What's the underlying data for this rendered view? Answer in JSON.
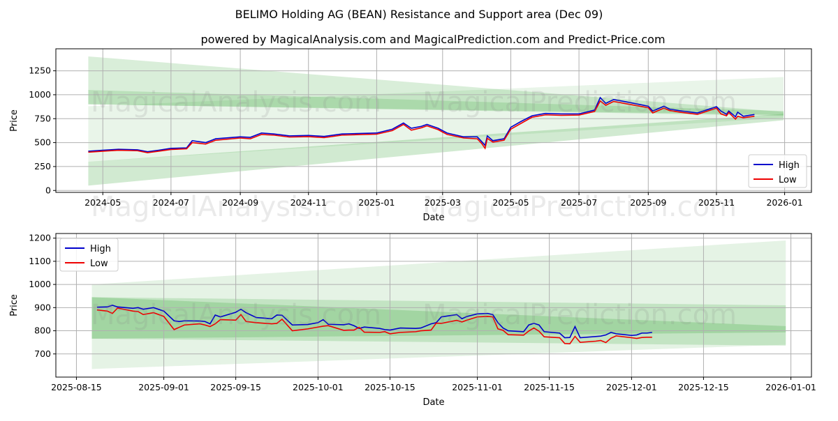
{
  "title": "BELIMO Holding AG (BEAN) Resistance and Support area (Dec 09)",
  "subtitle": "powered by MagicalAnalysis.com and MagicalPrediction.com and Predict-Price.com",
  "watermarks": [
    "MagicalAnalysis.com",
    "MagicalPrediction.com"
  ],
  "colors": {
    "high": "#0000cc",
    "low": "#ee0000",
    "band": "#2ca02c"
  },
  "chart_data": [
    {
      "type": "line",
      "xlabel": "Date",
      "ylabel": "Price",
      "ylim": [
        -20,
        1480
      ],
      "xlim": [
        "2024-03-20",
        "2026-01-25"
      ],
      "grid": true,
      "legend": "bottom-right",
      "yticks": [
        0,
        250,
        500,
        750,
        1000,
        1250
      ],
      "xticks": [
        "2024-05",
        "2024-07",
        "2024-09",
        "2024-11",
        "2025-01",
        "2025-03",
        "2025-05",
        "2025-07",
        "2025-09",
        "2025-11",
        "2026-01"
      ],
      "bands": [
        {
          "name": "resistance-outer",
          "start": "2024-04-18",
          "end": "2025-12-31",
          "top": [
            1400,
            820
          ],
          "bottom": [
            900,
            780
          ],
          "opacity": 0.18
        },
        {
          "name": "resistance-inner",
          "start": "2024-04-18",
          "end": "2025-12-31",
          "top": [
            1050,
            830
          ],
          "bottom": [
            900,
            790
          ],
          "opacity": 0.18
        },
        {
          "name": "support-outer",
          "start": "2024-04-18",
          "end": "2025-12-31",
          "top": [
            300,
            800
          ],
          "bottom": [
            51,
            734
          ],
          "opacity": 0.22
        },
        {
          "name": "support-wide",
          "start": "2024-04-18",
          "end": "2025-12-31",
          "top": [
            880,
            1185
          ],
          "bottom": [
            300,
            760
          ],
          "opacity": 0.1
        }
      ],
      "x": [
        "2024-04-18",
        "2024-05-01",
        "2024-05-15",
        "2024-06-01",
        "2024-06-10",
        "2024-06-20",
        "2024-07-01",
        "2024-07-15",
        "2024-07-20",
        "2024-08-01",
        "2024-08-10",
        "2024-09-01",
        "2024-09-10",
        "2024-09-20",
        "2024-10-01",
        "2024-10-15",
        "2024-11-01",
        "2024-11-15",
        "2024-12-01",
        "2024-12-15",
        "2025-01-01",
        "2025-01-15",
        "2025-01-25",
        "2025-02-01",
        "2025-02-10",
        "2025-02-15",
        "2025-02-25",
        "2025-03-05",
        "2025-03-20",
        "2025-04-01",
        "2025-04-05",
        "2025-04-08",
        "2025-04-10",
        "2025-04-15",
        "2025-04-25",
        "2025-05-01",
        "2025-05-10",
        "2025-05-20",
        "2025-06-01",
        "2025-06-15",
        "2025-07-01",
        "2025-07-15",
        "2025-07-20",
        "2025-07-25",
        "2025-08-01",
        "2025-08-15",
        "2025-09-01",
        "2025-09-05",
        "2025-09-15",
        "2025-09-20",
        "2025-10-01",
        "2025-10-15",
        "2025-11-01",
        "2025-11-05",
        "2025-11-10",
        "2025-11-12",
        "2025-11-18",
        "2025-11-20",
        "2025-11-25",
        "2025-12-05"
      ],
      "series": [
        {
          "name": "High",
          "values": [
            410,
            420,
            430,
            425,
            405,
            420,
            440,
            445,
            520,
            500,
            540,
            560,
            555,
            600,
            590,
            570,
            575,
            565,
            590,
            595,
            600,
            640,
            705,
            650,
            670,
            690,
            650,
            600,
            560,
            560,
            510,
            470,
            570,
            520,
            540,
            660,
            720,
            780,
            805,
            800,
            800,
            840,
            970,
            910,
            950,
            920,
            880,
            830,
            880,
            850,
            830,
            810,
            875,
            830,
            795,
            830,
            770,
            818,
            775,
            793
          ]
        },
        {
          "name": "Low",
          "values": [
            400,
            410,
            420,
            415,
            395,
            410,
            428,
            435,
            500,
            485,
            525,
            548,
            540,
            585,
            578,
            558,
            562,
            552,
            578,
            583,
            588,
            625,
            690,
            630,
            655,
            675,
            635,
            585,
            548,
            540,
            490,
            440,
            545,
            505,
            525,
            640,
            700,
            765,
            790,
            785,
            788,
            825,
            935,
            890,
            930,
            900,
            865,
            810,
            860,
            835,
            815,
            795,
            860,
            800,
            780,
            815,
            745,
            775,
            760,
            775
          ]
        }
      ]
    },
    {
      "type": "line",
      "xlabel": "Date",
      "ylabel": "Price",
      "ylim": [
        600,
        1220
      ],
      "xlim": [
        "2025-08-11",
        "2026-01-05"
      ],
      "grid": true,
      "legend": "top-left",
      "yticks": [
        700,
        800,
        900,
        1000,
        1100,
        1200
      ],
      "xticks": [
        "2025-08-15",
        "2025-09-01",
        "2025-09-15",
        "2025-10-01",
        "2025-10-15",
        "2025-11-01",
        "2025-11-15",
        "2025-12-01",
        "2025-12-15",
        "2026-01-01"
      ],
      "bands": [
        {
          "name": "outer",
          "start": "2025-08-18",
          "end": "2025-12-31",
          "top": [
            1000,
            1190
          ],
          "bottom": [
            635,
            740
          ],
          "opacity": 0.12
        },
        {
          "name": "middle",
          "start": "2025-08-18",
          "end": "2025-12-31",
          "top": [
            945,
            910
          ],
          "bottom": [
            766,
            736
          ],
          "opacity": 0.18
        },
        {
          "name": "inner",
          "start": "2025-08-18",
          "end": "2025-12-31",
          "top": [
            945,
            820
          ],
          "bottom": [
            766,
            793
          ],
          "opacity": 0.22
        }
      ],
      "x": [
        "2025-08-19",
        "2025-08-21",
        "2025-08-22",
        "2025-08-23",
        "2025-08-26",
        "2025-08-27",
        "2025-08-28",
        "2025-08-30",
        "2025-09-01",
        "2025-09-03",
        "2025-09-04",
        "2025-09-05",
        "2025-09-08",
        "2025-09-09",
        "2025-09-10",
        "2025-09-11",
        "2025-09-12",
        "2025-09-15",
        "2025-09-16",
        "2025-09-17",
        "2025-09-19",
        "2025-09-22",
        "2025-09-23",
        "2025-09-24",
        "2025-09-26",
        "2025-09-29",
        "2025-10-01",
        "2025-10-02",
        "2025-10-03",
        "2025-10-06",
        "2025-10-07",
        "2025-10-08",
        "2025-10-09",
        "2025-10-10",
        "2025-10-13",
        "2025-10-14",
        "2025-10-15",
        "2025-10-17",
        "2025-10-20",
        "2025-10-21",
        "2025-10-23",
        "2025-10-24",
        "2025-10-25",
        "2025-10-28",
        "2025-10-29",
        "2025-10-30",
        "2025-11-01",
        "2025-11-03",
        "2025-11-04",
        "2025-11-05",
        "2025-11-06",
        "2025-11-07",
        "2025-11-10",
        "2025-11-11",
        "2025-11-12",
        "2025-11-13",
        "2025-11-14",
        "2025-11-17",
        "2025-11-18",
        "2025-11-19",
        "2025-11-20",
        "2025-11-21",
        "2025-11-24",
        "2025-11-25",
        "2025-11-26",
        "2025-11-27",
        "2025-11-28",
        "2025-12-01",
        "2025-12-02",
        "2025-12-03",
        "2025-12-04",
        "2025-12-05"
      ],
      "series": [
        {
          "name": "High",
          "values": [
            902,
            903,
            910,
            903,
            897,
            900,
            893,
            900,
            885,
            843,
            840,
            843,
            842,
            840,
            830,
            868,
            860,
            880,
            893,
            878,
            857,
            852,
            868,
            867,
            825,
            827,
            835,
            848,
            828,
            826,
            830,
            822,
            810,
            816,
            810,
            805,
            803,
            812,
            810,
            812,
            830,
            835,
            860,
            870,
            852,
            862,
            873,
            875,
            870,
            835,
            812,
            800,
            796,
            825,
            832,
            825,
            796,
            790,
            770,
            771,
            818,
            770,
            775,
            777,
            782,
            793,
            787,
            780,
            782,
            790,
            790,
            793
          ]
        },
        {
          "name": "Low",
          "values": [
            890,
            885,
            875,
            898,
            885,
            883,
            870,
            878,
            862,
            805,
            815,
            825,
            830,
            825,
            818,
            830,
            848,
            846,
            870,
            840,
            835,
            830,
            832,
            850,
            800,
            808,
            816,
            820,
            822,
            802,
            803,
            803,
            815,
            794,
            793,
            796,
            787,
            793,
            796,
            800,
            803,
            833,
            832,
            845,
            838,
            846,
            860,
            862,
            860,
            808,
            802,
            783,
            781,
            799,
            812,
            798,
            774,
            770,
            745,
            744,
            776,
            750,
            755,
            758,
            749,
            768,
            778,
            770,
            767,
            771,
            772,
            772
          ]
        }
      ]
    }
  ]
}
